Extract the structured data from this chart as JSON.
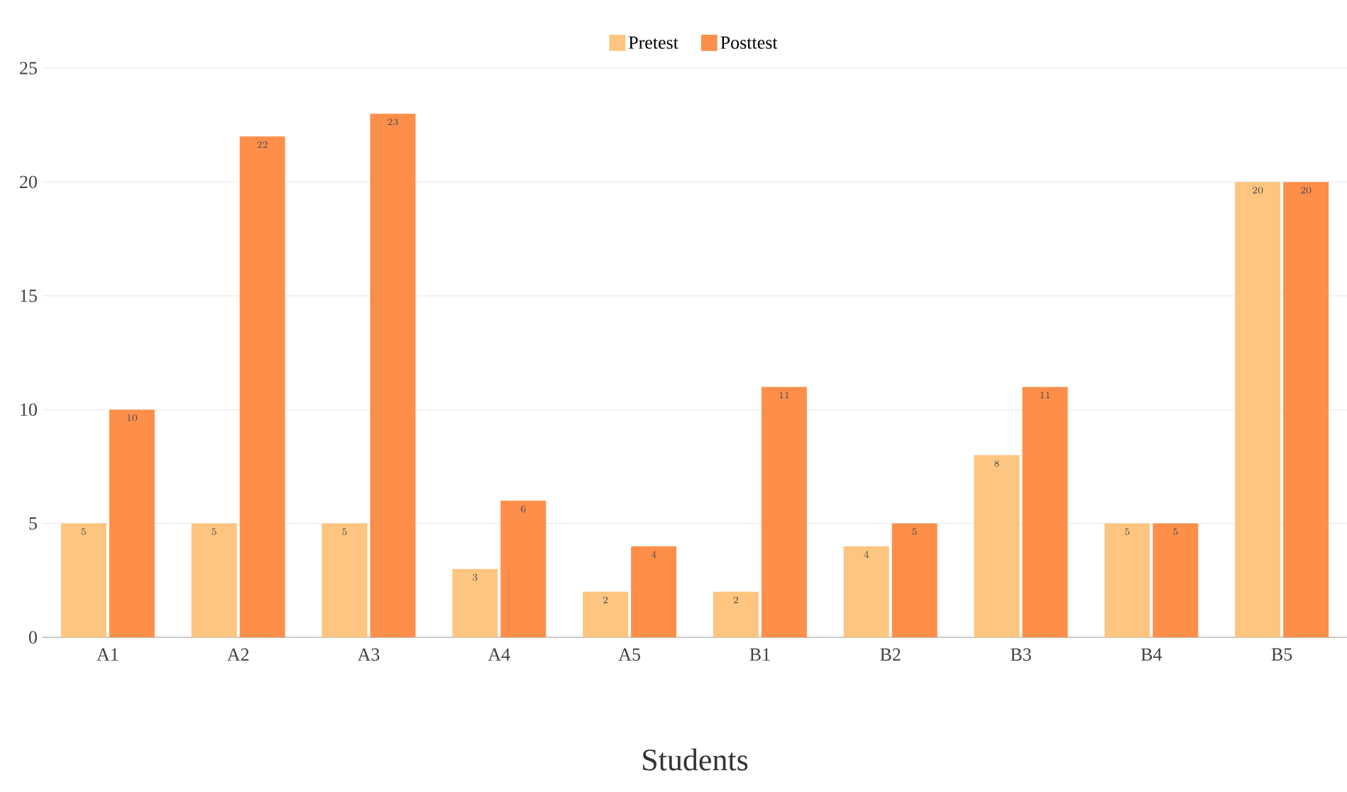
{
  "chart_data": {
    "type": "bar",
    "xlabel": "Students",
    "categories": [
      "A1",
      "A2",
      "A3",
      "A4",
      "A5",
      "B1",
      "B2",
      "B3",
      "B4",
      "B5"
    ],
    "series": [
      {
        "name": "Pretest",
        "color": "#fdc57f",
        "values": [
          5,
          5,
          5,
          3,
          2,
          2,
          4,
          8,
          5,
          20
        ]
      },
      {
        "name": "Posttest",
        "color": "#fd8f4a",
        "values": [
          10,
          22,
          23,
          6,
          4,
          11,
          5,
          11,
          5,
          20
        ]
      }
    ],
    "ylim": [
      0,
      25
    ],
    "yticks": [
      0,
      5,
      10,
      15,
      20,
      25
    ],
    "grid": "y",
    "legend": "top",
    "data_labels": true
  }
}
